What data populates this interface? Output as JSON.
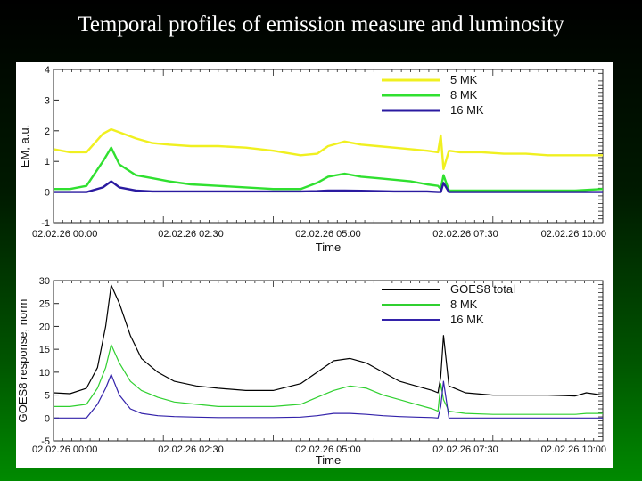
{
  "slide": {
    "title": "Temporal profiles of  emission measure and luminosity"
  },
  "chart_data": [
    {
      "type": "line",
      "panel": "top",
      "xlabel": "Time",
      "ylabel": "EM, a.u.",
      "xlim": [
        0,
        10
      ],
      "ylim": [
        -1,
        4
      ],
      "yticks": [
        -1,
        0,
        1,
        2,
        3,
        4
      ],
      "xticks": [
        {
          "value": 0,
          "label": "02.02.26 00:00"
        },
        {
          "value": 2.5,
          "label": "02.02.26 02:30"
        },
        {
          "value": 5,
          "label": "02.02.26 05:00"
        },
        {
          "value": 7.5,
          "label": "02.02.26 07:30"
        },
        {
          "value": 10,
          "label": "02.02.26 10:00"
        }
      ],
      "legend_position": "top-right",
      "x": [
        0,
        0.3,
        0.6,
        0.9,
        1.05,
        1.2,
        1.5,
        1.8,
        2.1,
        2.5,
        3.0,
        3.5,
        4.0,
        4.5,
        4.8,
        5.0,
        5.3,
        5.6,
        5.9,
        6.2,
        6.5,
        6.8,
        7.0,
        7.05,
        7.1,
        7.2,
        7.4,
        7.8,
        8.2,
        8.6,
        9.0,
        9.5,
        10.0
      ],
      "series": [
        {
          "name": "5 MK",
          "color": "#f0f020",
          "values": [
            1.4,
            1.3,
            1.3,
            1.9,
            2.05,
            1.95,
            1.75,
            1.6,
            1.55,
            1.5,
            1.5,
            1.45,
            1.35,
            1.2,
            1.25,
            1.5,
            1.65,
            1.55,
            1.5,
            1.45,
            1.4,
            1.35,
            1.3,
            1.85,
            0.75,
            1.35,
            1.3,
            1.3,
            1.25,
            1.25,
            1.2,
            1.2,
            1.2
          ]
        },
        {
          "name": "8 MK",
          "color": "#30e030",
          "values": [
            0.1,
            0.1,
            0.2,
            1.0,
            1.45,
            0.9,
            0.55,
            0.45,
            0.35,
            0.25,
            0.2,
            0.15,
            0.1,
            0.1,
            0.3,
            0.5,
            0.6,
            0.5,
            0.45,
            0.4,
            0.35,
            0.25,
            0.2,
            0.1,
            0.55,
            0.05,
            0.05,
            0.05,
            0.05,
            0.05,
            0.05,
            0.05,
            0.1
          ]
        },
        {
          "name": "16 MK",
          "color": "#2a1aa0",
          "values": [
            0,
            0,
            0,
            0.15,
            0.35,
            0.15,
            0.05,
            0.02,
            0.02,
            0.02,
            0.02,
            0.02,
            0.02,
            0.02,
            0.03,
            0.05,
            0.05,
            0.04,
            0.03,
            0.02,
            0.02,
            0.02,
            0,
            0,
            0.3,
            0,
            0,
            0,
            0,
            0,
            0,
            0,
            0
          ]
        }
      ]
    },
    {
      "type": "line",
      "panel": "bottom",
      "xlabel": "Time",
      "ylabel": "GOES8 response, norm",
      "xlim": [
        0,
        10
      ],
      "ylim": [
        -5,
        30
      ],
      "yticks": [
        -5,
        0,
        5,
        10,
        15,
        20,
        25,
        30
      ],
      "xticks": [
        {
          "value": 0,
          "label": "02.02.26 00:00"
        },
        {
          "value": 2.5,
          "label": "02.02.26 02:30"
        },
        {
          "value": 5,
          "label": "02.02.26 05:00"
        },
        {
          "value": 7.5,
          "label": "02.02.26 07:30"
        },
        {
          "value": 10,
          "label": "02.02.26 10:00"
        }
      ],
      "legend_position": "top-right",
      "x": [
        0,
        0.3,
        0.6,
        0.8,
        0.95,
        1.05,
        1.2,
        1.4,
        1.6,
        1.9,
        2.2,
        2.6,
        3.0,
        3.5,
        4.0,
        4.5,
        4.8,
        5.1,
        5.4,
        5.7,
        6.0,
        6.3,
        6.6,
        6.9,
        7.0,
        7.05,
        7.1,
        7.2,
        7.5,
        8.0,
        8.5,
        9.0,
        9.5,
        9.7,
        10.0
      ],
      "series": [
        {
          "name": "GOES8 total",
          "color": "#000000",
          "values": [
            5.5,
            5.3,
            6.5,
            11,
            20,
            29,
            25,
            18,
            13,
            10,
            8,
            7,
            6.5,
            6,
            6,
            7.5,
            10,
            12.5,
            13,
            12,
            10,
            8,
            7,
            6,
            5.5,
            9,
            18,
            7,
            5.5,
            5,
            5,
            5,
            4.8,
            5.5,
            5
          ]
        },
        {
          "name": "8 MK",
          "color": "#30d030",
          "values": [
            2.5,
            2.5,
            3,
            6.5,
            11,
            16,
            12,
            8,
            6,
            4.5,
            3.5,
            3,
            2.5,
            2.5,
            2.5,
            3,
            4.5,
            6,
            7,
            6.5,
            5,
            4,
            3,
            2,
            1.5,
            7.5,
            4,
            1.5,
            1,
            0.8,
            0.8,
            0.8,
            0.8,
            1,
            1
          ]
        },
        {
          "name": "16 MK",
          "color": "#3322aa",
          "values": [
            0,
            0,
            0,
            3,
            6.5,
            9.5,
            5,
            2,
            1,
            0.5,
            0.3,
            0.2,
            0.1,
            0.1,
            0.1,
            0.2,
            0.5,
            1,
            1,
            0.8,
            0.5,
            0.3,
            0.2,
            0.1,
            0,
            2.5,
            8,
            0,
            0,
            0,
            0,
            0,
            0,
            0,
            0
          ]
        }
      ]
    }
  ]
}
